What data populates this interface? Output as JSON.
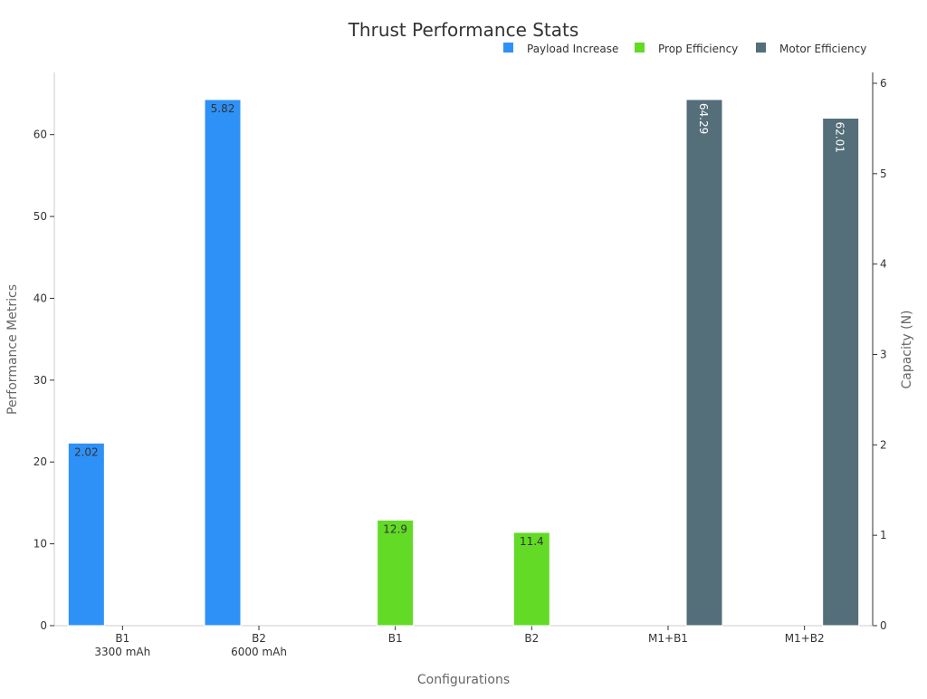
{
  "chart_data": {
    "type": "bar",
    "title": "Thrust Performance Stats",
    "xlabel": "Configurations",
    "ylabel": "Performance Metrics",
    "y2label": "Capacity (N)",
    "categories": [
      [
        "B1",
        "3300 mAh"
      ],
      [
        "B2",
        "6000 mAh"
      ],
      [
        "B1"
      ],
      [
        "B2"
      ],
      [
        "M1+B1"
      ],
      [
        "M1+B2"
      ]
    ],
    "ylim": [
      0,
      67.6
    ],
    "y2lim": [
      0,
      6.12
    ],
    "yticks": [
      0,
      10,
      20,
      30,
      40,
      50,
      60
    ],
    "y2ticks": [
      0,
      1,
      2,
      3,
      4,
      5,
      6
    ],
    "grid": false,
    "legend_placement": "top-right",
    "series": [
      {
        "name": "Payload Increase",
        "color": "#2E91F8",
        "axis": "right",
        "values": [
          2.02,
          5.82,
          null,
          null,
          null,
          null
        ],
        "labels": [
          "2.02",
          "5.82",
          null,
          null,
          null,
          null
        ],
        "label_color": "#333333",
        "label_rotation": 0
      },
      {
        "name": "Prop Efficiency",
        "color": "#62DA26",
        "axis": "left",
        "values": [
          null,
          null,
          12.9,
          11.4,
          null,
          null
        ],
        "labels": [
          null,
          null,
          "12.9",
          "11.4",
          null,
          null
        ],
        "label_color": "#333333",
        "label_rotation": 0
      },
      {
        "name": "Motor Efficiency",
        "color": "#546E7A",
        "axis": "left",
        "values": [
          null,
          null,
          null,
          null,
          64.29,
          62.01
        ],
        "labels": [
          null,
          null,
          null,
          null,
          "64.29",
          "62.01"
        ],
        "label_color": "#ffffff",
        "label_rotation": 90
      }
    ]
  }
}
